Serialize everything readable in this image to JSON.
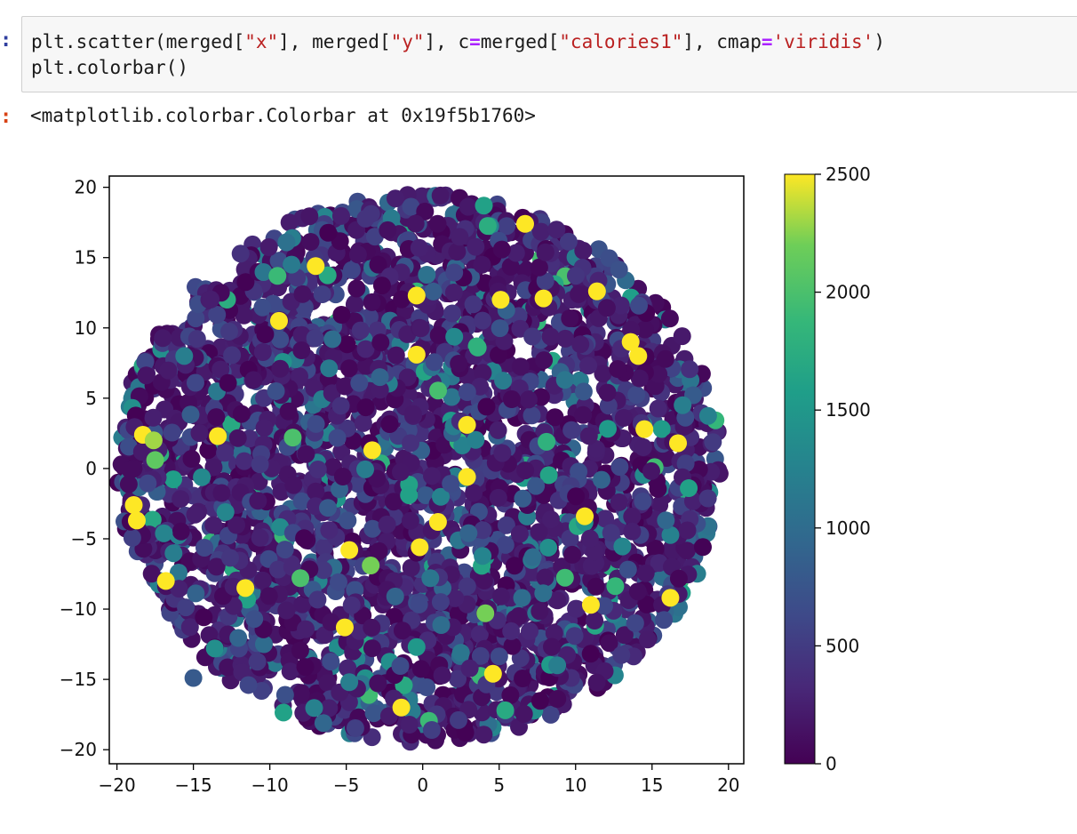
{
  "notebook": {
    "input_prompt": ":",
    "output_prompt": ":",
    "code_lines": [
      [
        {
          "t": "plt.scatter(merged[",
          "c": ""
        },
        {
          "t": "\"x\"",
          "c": "str"
        },
        {
          "t": "], merged[",
          "c": ""
        },
        {
          "t": "\"y\"",
          "c": "str"
        },
        {
          "t": "], c",
          "c": ""
        },
        {
          "t": "=",
          "c": "op"
        },
        {
          "t": "merged[",
          "c": ""
        },
        {
          "t": "\"calories1\"",
          "c": "str"
        },
        {
          "t": "], cmap",
          "c": ""
        },
        {
          "t": "=",
          "c": "op"
        },
        {
          "t": "'viridis'",
          "c": "str"
        },
        {
          "t": ")",
          "c": ""
        }
      ],
      [
        {
          "t": "plt.colorbar()",
          "c": ""
        }
      ]
    ],
    "output_text": "<matplotlib.colorbar.Colorbar at 0x19f5b1760>"
  },
  "chart_data": {
    "type": "scatter",
    "description_note": "",
    "x_ticks": [
      "−20",
      "−15",
      "−10",
      "−5",
      "0",
      "5",
      "10",
      "15",
      "20"
    ],
    "y_ticks": [
      "20",
      "15",
      "10",
      "5",
      "0",
      "−5",
      "−10",
      "−15",
      "−20"
    ],
    "xlim": [
      -20.5,
      21
    ],
    "ylim": [
      -21,
      20.8
    ],
    "colorbar": {
      "cmap": "viridis",
      "ticks": [
        "2500",
        "2000",
        "1500",
        "1000",
        "500",
        "0"
      ],
      "range": [
        0,
        2500
      ]
    },
    "cloud_extent": {
      "x": [
        -20,
        19.5
      ],
      "y": [
        -19.5,
        19.5
      ]
    },
    "highlighted_points": [
      {
        "x": -18.3,
        "y": 2.4,
        "c": 2500
      },
      {
        "x": -17.6,
        "y": 2.0,
        "c": 2300
      },
      {
        "x": -17.5,
        "y": 0.6,
        "c": 2100
      },
      {
        "x": -18.9,
        "y": -2.6,
        "c": 2500
      },
      {
        "x": -18.7,
        "y": -3.7,
        "c": 2500
      },
      {
        "x": -16.8,
        "y": -8.0,
        "c": 2500
      },
      {
        "x": -13.4,
        "y": 2.3,
        "c": 2500
      },
      {
        "x": -8.5,
        "y": 2.2,
        "c": 2000
      },
      {
        "x": -9.4,
        "y": 10.5,
        "c": 2500
      },
      {
        "x": -7.0,
        "y": 14.4,
        "c": 2500
      },
      {
        "x": -9.5,
        "y": 13.7,
        "c": 1900
      },
      {
        "x": -11.6,
        "y": -8.5,
        "c": 2500
      },
      {
        "x": -8.0,
        "y": -7.8,
        "c": 2000
      },
      {
        "x": -11.4,
        "y": -15.4,
        "c": 600
      },
      {
        "x": -5.1,
        "y": -11.3,
        "c": 2500
      },
      {
        "x": -4.8,
        "y": -5.8,
        "c": 2500
      },
      {
        "x": -3.4,
        "y": -6.9,
        "c": 2200
      },
      {
        "x": -1.4,
        "y": -17.0,
        "c": 2500
      },
      {
        "x": -0.4,
        "y": -12.7,
        "c": 1500
      },
      {
        "x": -0.2,
        "y": -5.6,
        "c": 2500
      },
      {
        "x": 1.0,
        "y": -3.8,
        "c": 2500
      },
      {
        "x": -0.4,
        "y": 8.1,
        "c": 2500
      },
      {
        "x": 3.6,
        "y": 8.6,
        "c": 1800
      },
      {
        "x": -3.3,
        "y": 1.3,
        "c": 2500
      },
      {
        "x": 2.9,
        "y": 3.1,
        "c": 2500
      },
      {
        "x": 2.9,
        "y": -0.6,
        "c": 2500
      },
      {
        "x": -0.9,
        "y": -1.9,
        "c": 1600
      },
      {
        "x": 4.1,
        "y": -10.3,
        "c": 2200
      },
      {
        "x": 4.6,
        "y": -14.6,
        "c": 2500
      },
      {
        "x": 5.4,
        "y": -17.2,
        "c": 1700
      },
      {
        "x": 5.1,
        "y": 12.0,
        "c": 2500
      },
      {
        "x": 6.7,
        "y": 17.4,
        "c": 2500
      },
      {
        "x": 4.0,
        "y": 18.7,
        "c": 1600
      },
      {
        "x": -0.4,
        "y": 12.3,
        "c": 2500
      },
      {
        "x": 8.1,
        "y": 1.9,
        "c": 1800
      },
      {
        "x": 7.9,
        "y": 12.1,
        "c": 2500
      },
      {
        "x": 11.4,
        "y": 12.6,
        "c": 2500
      },
      {
        "x": 13.6,
        "y": 9.0,
        "c": 2500
      },
      {
        "x": 14.1,
        "y": 8.0,
        "c": 2500
      },
      {
        "x": 14.5,
        "y": 2.8,
        "c": 2500
      },
      {
        "x": 16.7,
        "y": 1.8,
        "c": 2500
      },
      {
        "x": 17.4,
        "y": -1.4,
        "c": 1600
      },
      {
        "x": 10.6,
        "y": -3.4,
        "c": 2500
      },
      {
        "x": 11.0,
        "y": -9.7,
        "c": 2500
      },
      {
        "x": 16.2,
        "y": -9.2,
        "c": 2500
      },
      {
        "x": 13.9,
        "y": -11.0,
        "c": 600
      },
      {
        "x": -13.6,
        "y": -12.8,
        "c": 1400
      },
      {
        "x": -15.0,
        "y": -14.9,
        "c": 800
      },
      {
        "x": -4.8,
        "y": -15.2,
        "c": 1200
      },
      {
        "x": 2.5,
        "y": -13.1,
        "c": 1100
      },
      {
        "x": -2.8,
        "y": 6.5,
        "c": 900
      },
      {
        "x": -9.6,
        "y": 5.5,
        "c": 700
      },
      {
        "x": -6.2,
        "y": -2.8,
        "c": 800
      },
      {
        "x": -1.8,
        "y": -9.1,
        "c": 900
      },
      {
        "x": 7.2,
        "y": -6.3,
        "c": 1000
      },
      {
        "x": 9.3,
        "y": 6.3,
        "c": 1100
      },
      {
        "x": 11.7,
        "y": -0.8,
        "c": 900
      },
      {
        "x": -15.6,
        "y": 8.0,
        "c": 1200
      },
      {
        "x": -12.9,
        "y": -3.1,
        "c": 1300
      },
      {
        "x": -5.9,
        "y": 9.2,
        "c": 1000
      },
      {
        "x": 0.5,
        "y": -7.8,
        "c": 1100
      },
      {
        "x": 3.0,
        "y": -4.6,
        "c": 900
      },
      {
        "x": 6.5,
        "y": -9.2,
        "c": 1000
      },
      {
        "x": 8.8,
        "y": -14.0,
        "c": 1200
      },
      {
        "x": -9.0,
        "y": -16.1,
        "c": 700
      },
      {
        "x": 17.0,
        "y": 4.5,
        "c": 1200
      }
    ]
  }
}
